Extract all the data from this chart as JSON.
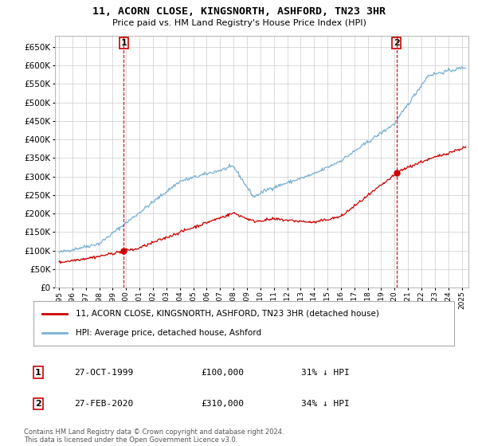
{
  "title": "11, ACORN CLOSE, KINGSNORTH, ASHFORD, TN23 3HR",
  "subtitle": "Price paid vs. HM Land Registry's House Price Index (HPI)",
  "ylim": [
    0,
    680000
  ],
  "xlim_start": 1994.7,
  "xlim_end": 2025.5,
  "property_color": "#cc0000",
  "hpi_color": "#7ab0d4",
  "vline_color": "#cc0000",
  "transaction1_year": 1999.82,
  "transaction1_price": 100000,
  "transaction2_year": 2020.15,
  "transaction2_price": 310000,
  "legend_property": "11, ACORN CLOSE, KINGSNORTH, ASHFORD, TN23 3HR (detached house)",
  "legend_hpi": "HPI: Average price, detached house, Ashford",
  "table_rows": [
    {
      "num": "1",
      "date": "27-OCT-1999",
      "price": "£100,000",
      "hpi": "31% ↓ HPI"
    },
    {
      "num": "2",
      "date": "27-FEB-2020",
      "price": "£310,000",
      "hpi": "34% ↓ HPI"
    }
  ],
  "footnote": "Contains HM Land Registry data © Crown copyright and database right 2024.\nThis data is licensed under the Open Government Licence v3.0.",
  "background_color": "#ffffff",
  "grid_color": "#cccccc"
}
